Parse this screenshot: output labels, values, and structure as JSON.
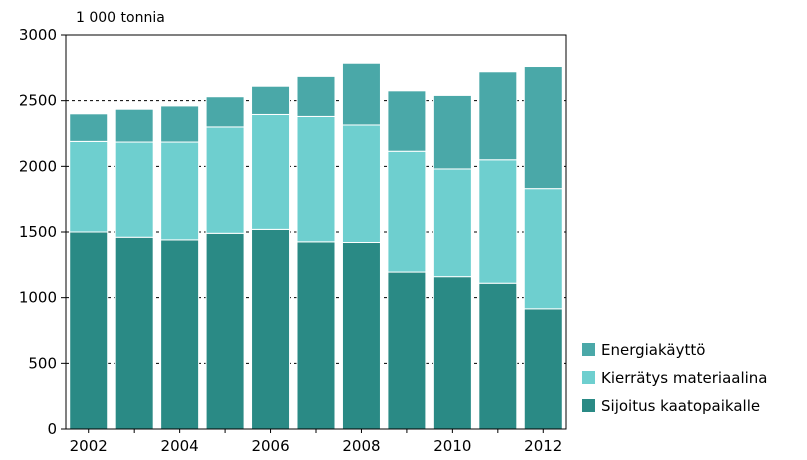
{
  "chart_data": {
    "type": "bar",
    "stacked": true,
    "unit_label": "1 000 tonnia",
    "categories": [
      "2002",
      "2003",
      "2004",
      "2005",
      "2006",
      "2007",
      "2008",
      "2009",
      "2010",
      "2011",
      "2012"
    ],
    "x_tick_labels": [
      "2002",
      "2004",
      "2006",
      "2008",
      "2010",
      "2012"
    ],
    "y_tick_labels": [
      "0",
      "500",
      "1000",
      "1500",
      "2000",
      "2500",
      "3000"
    ],
    "ylim": [
      0,
      3000
    ],
    "y_ticks": [
      0,
      500,
      1000,
      1500,
      2000,
      2500,
      3000
    ],
    "grid": true,
    "legend_position": "bottom-right",
    "series": [
      {
        "name": "Sijoitus kaatopaikalle",
        "color": "#2a8a85",
        "values": [
          1500,
          1460,
          1440,
          1490,
          1520,
          1425,
          1420,
          1195,
          1160,
          1110,
          915
        ]
      },
      {
        "name": "Kierrätys materiaalina",
        "color": "#6ecfcf",
        "values": [
          690,
          725,
          745,
          810,
          875,
          955,
          895,
          920,
          820,
          940,
          915
        ]
      },
      {
        "name": "Energiakäyttö",
        "color": "#4aa8a8",
        "values": [
          210,
          250,
          275,
          230,
          215,
          305,
          470,
          460,
          560,
          670,
          930
        ]
      }
    ]
  }
}
